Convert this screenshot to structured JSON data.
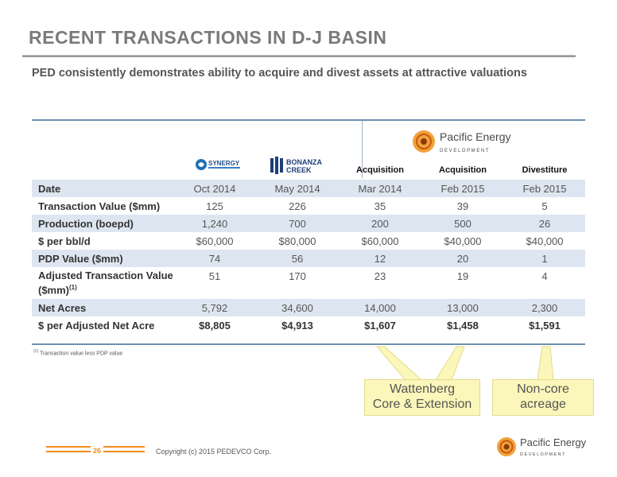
{
  "title": "RECENT TRANSACTIONS IN D-J BASIN",
  "subtitle": "PED consistently demonstrates ability to acquire and divest assets at attractive valuations",
  "logos": {
    "synergy": "SYNERGY",
    "bonanza_line1": "BONANZA",
    "bonanza_line2": "CREEK",
    "ped_name": "Pacific Energy",
    "ped_sub": "D E V E L O P M E N T"
  },
  "table": {
    "group_headers": [
      "Acquisition",
      "Acquisition",
      "Divestiture"
    ],
    "rows": [
      {
        "label": "Date",
        "values": [
          "Oct 2014",
          "May 2014",
          "Mar 2014",
          "Feb 2015",
          "Feb 2015"
        ]
      },
      {
        "label": "Transaction Value ($mm)",
        "values": [
          "125",
          "226",
          "35",
          "39",
          "5"
        ]
      },
      {
        "label": "Production (boepd)",
        "values": [
          "1,240",
          "700",
          "200",
          "500",
          "26"
        ]
      },
      {
        "label": "$ per bbl/d",
        "values": [
          "$60,000",
          "$80,000",
          "$60,000",
          "$40,000",
          "$40,000"
        ]
      },
      {
        "label": "PDP Value ($mm)",
        "values": [
          "74",
          "56",
          "12",
          "20",
          "1"
        ]
      },
      {
        "label": "Adjusted Transaction Value ($mm)",
        "label_sup": "(1)",
        "values": [
          "51",
          "170",
          "23",
          "19",
          "4"
        ]
      },
      {
        "label": "Net Acres",
        "values": [
          "5,792",
          "34,600",
          "14,000",
          "13,000",
          "2,300"
        ]
      },
      {
        "label": "$ per Adjusted Net Acre",
        "values": [
          "$8,805",
          "$4,913",
          "$1,607",
          "$1,458",
          "$1,591"
        ]
      }
    ]
  },
  "footnote": {
    "marker": "(1)",
    "text": "Transaction value less PDP value"
  },
  "callouts": {
    "wattenberg": {
      "line1": "Wattenberg",
      "line2": "Core & Extension"
    },
    "noncore": {
      "line1": "Non-core",
      "line2": "acreage"
    }
  },
  "footer": {
    "page_number": "26",
    "copyright": "Copyright (c) 2015 PEDEVCO Corp."
  },
  "colors": {
    "accent_orange": "#f28a1e",
    "table_shade": "#dde6f0",
    "rule_blue": "#6d8fae",
    "callout_fill": "#fbf6b9"
  }
}
